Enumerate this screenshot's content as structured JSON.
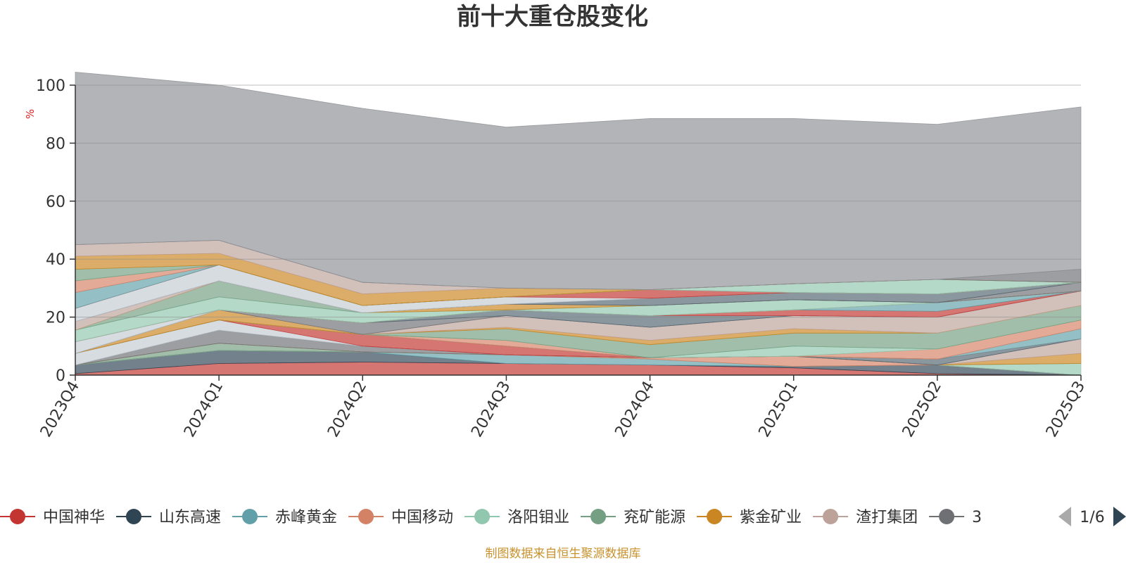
{
  "colors": {
    "background": "#ffffff",
    "axis": "#333333",
    "grid": "#888888",
    "title": "#333333",
    "ylabel": "#e02020",
    "source": "#c8922e"
  },
  "chart_data": {
    "type": "area",
    "stacked": true,
    "title": "前十大重仓股变化",
    "ylabel": "%",
    "xlabel": "",
    "ylim": [
      0,
      100
    ],
    "yticks": [
      0,
      20,
      40,
      60,
      80,
      100
    ],
    "grid": true,
    "legend_position": "bottom",
    "categories": [
      "2023Q4",
      "2024Q1",
      "2024Q2",
      "2024Q3",
      "2024Q4",
      "2025Q1",
      "2025Q2",
      "2025Q3"
    ],
    "series": [
      {
        "name": "中国神华",
        "color": "#c23531",
        "values": [
          0.5,
          4.0,
          4.5,
          4.0,
          3.5,
          2.5,
          0.5,
          0.0
        ]
      },
      {
        "name": "山东高速",
        "color": "#2f4554",
        "values": [
          3.0,
          4.5,
          3.5,
          0.0,
          0.0,
          0.5,
          3.0,
          0.0
        ]
      },
      {
        "name": "赤峰黄金",
        "color": "#61a0a8",
        "values": [
          0.0,
          0.0,
          0.0,
          3.0,
          2.0,
          0.0,
          0.0,
          0.0
        ]
      },
      {
        "name": "中国移动",
        "color": "#d48265",
        "values": [
          0.0,
          0.0,
          0.0,
          0.0,
          0.5,
          3.5,
          0.0,
          0.0
        ]
      },
      {
        "name": "洛阳钼业",
        "color": "#91c7ae",
        "values": [
          0.0,
          0.0,
          0.0,
          0.0,
          0.0,
          0.0,
          0.0,
          4.0
        ]
      },
      {
        "name": "兖矿能源",
        "color": "#749f83",
        "values": [
          0.0,
          2.5,
          0.0,
          0.0,
          0.0,
          0.0,
          0.0,
          0.0
        ]
      },
      {
        "name": "紫金矿业",
        "color": "#ca8622",
        "values": [
          0.0,
          0.0,
          0.0,
          0.0,
          0.0,
          0.0,
          0.0,
          3.5
        ]
      },
      {
        "name": "渣打集团",
        "color": "#bda29a",
        "values": [
          0.0,
          0.0,
          0.0,
          0.0,
          0.0,
          0.0,
          0.0,
          5.0
        ]
      },
      {
        "name": "",
        "color": "#6e7074",
        "values": [
          0.0,
          4.5,
          2.0,
          0.0,
          0.0,
          0.0,
          0.0,
          0.0
        ]
      },
      {
        "name": "",
        "color": "#546570",
        "values": [
          0.0,
          0.0,
          0.0,
          0.0,
          0.0,
          0.0,
          2.0,
          0.0
        ]
      },
      {
        "name": "",
        "color": "#c4ccd3",
        "values": [
          4.0,
          3.5,
          0.0,
          0.0,
          0.0,
          0.0,
          0.0,
          0.0
        ]
      },
      {
        "name": "",
        "color": "#c23531",
        "values": [
          0.0,
          0.0,
          4.0,
          3.0,
          0.0,
          0.0,
          0.0,
          0.0
        ]
      },
      {
        "name": "",
        "color": "#61a0a8",
        "values": [
          0.0,
          0.0,
          0.0,
          0.0,
          0.0,
          0.0,
          0.0,
          3.5
        ]
      },
      {
        "name": "",
        "color": "#d48265",
        "values": [
          0.0,
          0.0,
          0.0,
          2.0,
          0.0,
          0.0,
          3.5,
          3.0
        ]
      },
      {
        "name": "",
        "color": "#91c7ae",
        "values": [
          0.0,
          0.0,
          0.0,
          0.0,
          0.0,
          3.5,
          0.0,
          0.0
        ]
      },
      {
        "name": "",
        "color": "#749f83",
        "values": [
          0.0,
          0.0,
          0.0,
          4.0,
          4.5,
          4.5,
          5.5,
          5.0
        ]
      },
      {
        "name": "",
        "color": "#ca8622",
        "values": [
          0.0,
          3.5,
          0.0,
          0.5,
          1.5,
          1.5,
          0.0,
          0.0
        ]
      },
      {
        "name": "",
        "color": "#bda29a",
        "values": [
          0.0,
          0.0,
          0.0,
          4.0,
          4.5,
          4.5,
          5.5,
          5.0
        ]
      },
      {
        "name": "",
        "color": "#6e7074",
        "values": [
          0.0,
          0.0,
          4.0,
          0.0,
          0.0,
          0.0,
          0.0,
          0.0
        ]
      },
      {
        "name": "",
        "color": "#546570",
        "values": [
          0.0,
          0.0,
          0.0,
          2.0,
          4.0,
          0.0,
          0.0,
          0.0
        ]
      },
      {
        "name": "",
        "color": "#c4ccd3",
        "values": [
          4.0,
          0.0,
          0.0,
          0.0,
          0.0,
          0.0,
          0.0,
          0.0
        ]
      },
      {
        "name": "",
        "color": "#c23531",
        "values": [
          0.0,
          0.0,
          0.0,
          0.0,
          0.0,
          2.0,
          2.0,
          0.0
        ]
      },
      {
        "name": "",
        "color": "#61a0a8",
        "values": [
          0.0,
          0.0,
          0.0,
          0.0,
          0.0,
          0.0,
          3.0,
          0.0
        ]
      },
      {
        "name": "",
        "color": "#d48265",
        "values": [
          0.0,
          0.0,
          0.0,
          0.0,
          0.0,
          0.0,
          0.0,
          0.0
        ]
      },
      {
        "name": "",
        "color": "#91c7ae",
        "values": [
          4.0,
          4.5,
          3.5,
          0.0,
          3.5,
          3.5,
          0.0,
          0.0
        ]
      },
      {
        "name": "",
        "color": "#749f83",
        "values": [
          0.0,
          5.5,
          0.0,
          0.0,
          0.0,
          0.0,
          0.0,
          0.0
        ]
      },
      {
        "name": "",
        "color": "#ca8622",
        "values": [
          0.0,
          0.0,
          0.0,
          2.0,
          0.0,
          0.0,
          0.0,
          0.0
        ]
      },
      {
        "name": "",
        "color": "#bda29a",
        "values": [
          3.0,
          0.0,
          0.0,
          0.0,
          0.0,
          0.0,
          0.0,
          0.0
        ]
      },
      {
        "name": "",
        "color": "#6e7074",
        "values": [
          0.0,
          0.0,
          0.0,
          0.0,
          0.0,
          0.0,
          0.0,
          3.0
        ]
      },
      {
        "name": "",
        "color": "#546570",
        "values": [
          0.0,
          0.0,
          0.0,
          0.0,
          2.5,
          2.5,
          3.0,
          0.0
        ]
      },
      {
        "name": "",
        "color": "#c4ccd3",
        "values": [
          4.5,
          5.5,
          2.5,
          2.5,
          0.0,
          0.0,
          0.0,
          0.0
        ]
      },
      {
        "name": "",
        "color": "#c23531",
        "values": [
          0.0,
          0.0,
          0.0,
          0.0,
          3.0,
          0.0,
          0.0,
          0.0
        ]
      },
      {
        "name": "",
        "color": "#61a0a8",
        "values": [
          5.5,
          0.0,
          0.0,
          0.0,
          0.0,
          0.0,
          0.0,
          0.0
        ]
      },
      {
        "name": "",
        "color": "#d48265",
        "values": [
          4.0,
          0.0,
          0.0,
          0.0,
          0.0,
          0.0,
          0.0,
          0.0
        ]
      },
      {
        "name": "",
        "color": "#91c7ae",
        "values": [
          0.0,
          0.0,
          0.0,
          0.0,
          0.0,
          3.0,
          5.0,
          0.0
        ]
      },
      {
        "name": "",
        "color": "#749f83",
        "values": [
          4.0,
          0.0,
          0.0,
          0.0,
          0.0,
          0.0,
          0.0,
          0.0
        ]
      },
      {
        "name": "",
        "color": "#ca8622",
        "values": [
          4.5,
          4.0,
          4.0,
          3.0,
          0.0,
          0.0,
          0.0,
          0.0
        ]
      },
      {
        "name": "",
        "color": "#bda29a",
        "values": [
          4.0,
          4.5,
          4.0,
          0.0,
          0.0,
          0.0,
          0.0,
          0.0
        ]
      },
      {
        "name": "",
        "color": "#6e7074",
        "values": [
          0.0,
          0.0,
          0.0,
          0.0,
          0.0,
          0.0,
          0.0,
          4.5
        ]
      },
      {
        "name": "",
        "color": "#8e9095",
        "values": [
          59.5,
          53.5,
          60.0,
          55.5,
          59.0,
          57.0,
          53.5,
          56.0
        ]
      }
    ],
    "legend_entries": [
      "中国神华",
      "山东高速",
      "赤峰黄金",
      "中国移动",
      "洛阳钼业",
      "兖矿能源",
      "紫金矿业",
      "渣打集团"
    ]
  },
  "legend": {
    "page_indicator": "1/6",
    "truncated_item_glyph": "3",
    "truncated_item_color": "#6e7074"
  },
  "icons": {
    "prev_page": "arrow-left-icon",
    "next_page": "arrow-right-icon",
    "legend_marker": "circle-line-icon"
  },
  "source_note": "制图数据来自恒生聚源数据库"
}
